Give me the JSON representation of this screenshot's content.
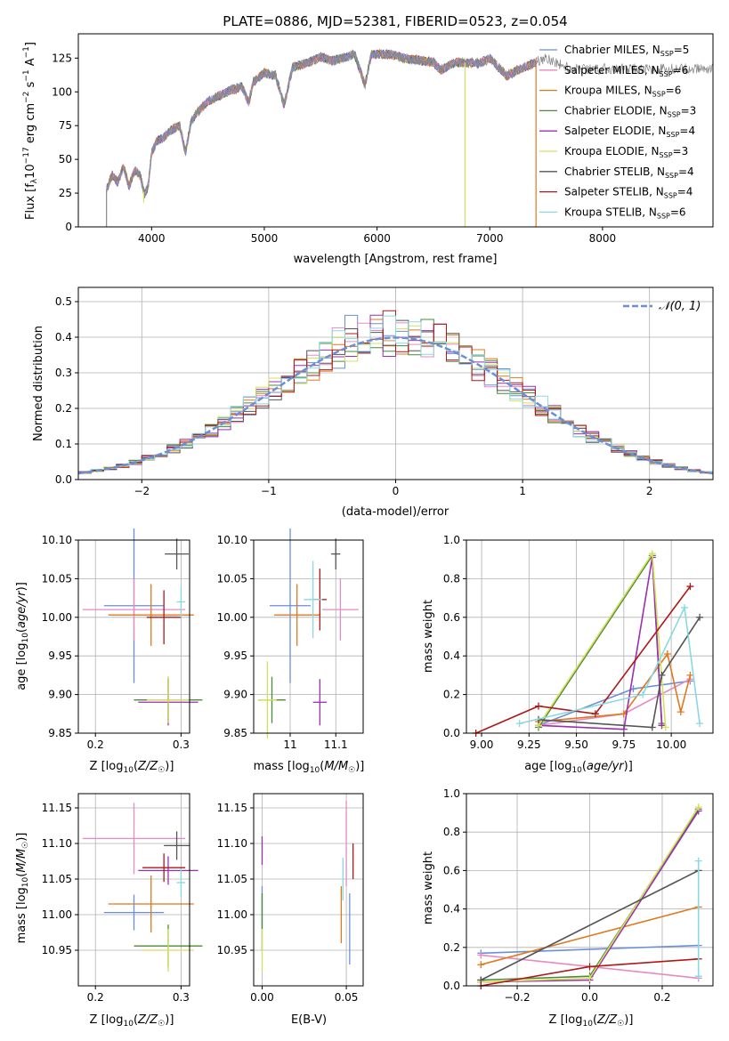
{
  "chart_data": [
    {
      "type": "line",
      "title": "PLATE=0886, MJD=52381, FIBERID=0523, z=0.054",
      "xlabel": "wavelength [Angstrom, rest frame]",
      "ylabel": "Flux [f_λ 10^-17 erg cm^-2 s^-1 A^-1]",
      "xlim": [
        3350,
        8980
      ],
      "ylim": [
        0,
        143
      ],
      "xticks": [
        4000,
        5000,
        6000,
        7000,
        8000
      ],
      "yticks": [
        0,
        25,
        50,
        75,
        100,
        125
      ],
      "legend_position": "upper right",
      "legend": [
        {
          "label": "Chabrier MILES, N",
          "sub": "SSP",
          "value": "=5",
          "color": "#6a8fd8"
        },
        {
          "label": "Salpeter MILES, N",
          "sub": "SSP",
          "value": "=6",
          "color": "#e58ac4"
        },
        {
          "label": "Kroupa MILES, N",
          "sub": "SSP",
          "value": "=6",
          "color": "#e0781e"
        },
        {
          "label": "Chabrier ELODIE, N",
          "sub": "SSP",
          "value": "=3",
          "color": "#4a8a3a"
        },
        {
          "label": "Salpeter ELODIE, N",
          "sub": "SSP",
          "value": "=4",
          "color": "#9b2fb0"
        },
        {
          "label": "Kroupa ELODIE, N",
          "sub": "SSP",
          "value": "=3",
          "color": "#d4e05c"
        },
        {
          "label": "Chabrier STELIB, N",
          "sub": "SSP",
          "value": "=4",
          "color": "#555555"
        },
        {
          "label": "Salpeter STELIB, N",
          "sub": "SSP",
          "value": "=4",
          "color": "#b01818"
        },
        {
          "label": "Kroupa STELIB, N",
          "sub": "SSP",
          "value": "=6",
          "color": "#8ad8e0"
        }
      ],
      "spectrum_envelope": {
        "x": [
          3600,
          3650,
          3700,
          3750,
          3800,
          3850,
          3900,
          3935,
          3970,
          4000,
          4050,
          4100,
          4150,
          4200,
          4250,
          4300,
          4350,
          4400,
          4500,
          4600,
          4700,
          4800,
          4861,
          4900,
          5000,
          5100,
          5175,
          5250,
          5400,
          5500,
          5600,
          5700,
          5800,
          5893,
          5950,
          6100,
          6300,
          6500,
          6563,
          6700,
          6900,
          7000,
          7150,
          7300,
          7500,
          7700
        ],
        "y": [
          28,
          38,
          33,
          45,
          30,
          42,
          38,
          24,
          30,
          55,
          64,
          66,
          70,
          73,
          75,
          55,
          78,
          84,
          93,
          97,
          101,
          104,
          92,
          107,
          114,
          112,
          90,
          118,
          122,
          126,
          123,
          125,
          128,
          105,
          128,
          128,
          124,
          122,
          116,
          122,
          121,
          125,
          112,
          118,
          125,
          117
        ]
      },
      "dropouts": [
        {
          "x": 3600,
          "to": 0,
          "color": "#888888"
        },
        {
          "x": 3930,
          "to": 18,
          "color": "#d4e05c"
        },
        {
          "x": 6780,
          "to": 0,
          "color": "#d4e05c"
        },
        {
          "x": 7410,
          "to": 0,
          "color": "#e0781e"
        }
      ]
    },
    {
      "type": "histogram",
      "xlabel": "(data-model)/error",
      "ylabel": "Normed distribution",
      "xlim": [
        -2.5,
        2.5
      ],
      "ylim": [
        0,
        0.54
      ],
      "xticks": [
        -2,
        -1,
        0,
        1,
        2
      ],
      "yticks": [
        0.0,
        0.1,
        0.2,
        0.3,
        0.4,
        0.5
      ],
      "legend": {
        "label": "𝒩(0, 1)",
        "color": "#6a8fd8"
      },
      "grid": true
    },
    {
      "type": "errorbar",
      "xlabel": "Z [log10(Z/Z☉)]",
      "ylabel": "age  [log10(age/yr)]",
      "xlim": [
        0.18,
        0.31
      ],
      "ylim": [
        9.85,
        10.1
      ],
      "xticks": [
        0.2,
        0.3
      ],
      "yticks": [
        9.85,
        9.9,
        9.95,
        10.0,
        10.05,
        10.1
      ]
    },
    {
      "type": "errorbar",
      "xlabel": "mass [log10(M/M☉)]",
      "ylabel": "",
      "xlim": [
        10.92,
        11.16
      ],
      "ylim": [
        9.85,
        10.1
      ],
      "xticks": [
        11.0,
        11.1
      ],
      "yticks": [
        9.85,
        9.9,
        9.95,
        10.0,
        10.05,
        10.1
      ]
    },
    {
      "type": "line",
      "xlabel": "age  [log10(age/yr)]",
      "ylabel": "mass weight",
      "xlim": [
        8.92,
        10.22
      ],
      "ylim": [
        0,
        1
      ],
      "xticks": [
        9.0,
        9.25,
        9.5,
        9.75,
        10.0
      ],
      "yticks": [
        0.0,
        0.2,
        0.4,
        0.6,
        0.8,
        1.0
      ]
    },
    {
      "type": "errorbar",
      "xlabel": "Z [log10(Z/Z☉)]",
      "ylabel": "mass [log10(M/M☉)]",
      "xlim": [
        0.18,
        0.31
      ],
      "ylim": [
        10.9,
        11.17
      ],
      "xticks": [
        0.2,
        0.3
      ],
      "yticks": [
        10.95,
        11.0,
        11.05,
        11.1,
        11.15
      ]
    },
    {
      "type": "errorbar",
      "xlabel": "E(B-V)",
      "ylabel": "",
      "xlim": [
        -0.005,
        0.06
      ],
      "ylim": [
        10.9,
        11.17
      ],
      "xticks": [
        0.0,
        0.05
      ],
      "yticks": [
        10.95,
        11.0,
        11.05,
        11.1,
        11.15
      ]
    },
    {
      "type": "line",
      "xlabel": "Z [log10(Z/Z☉)]",
      "ylabel": "mass weight",
      "xlim": [
        -0.34,
        0.34
      ],
      "ylim": [
        0,
        1
      ],
      "xticks": [
        -0.2,
        0.0,
        0.2
      ],
      "yticks": [
        0.0,
        0.2,
        0.4,
        0.6,
        0.8,
        1.0
      ]
    }
  ]
}
